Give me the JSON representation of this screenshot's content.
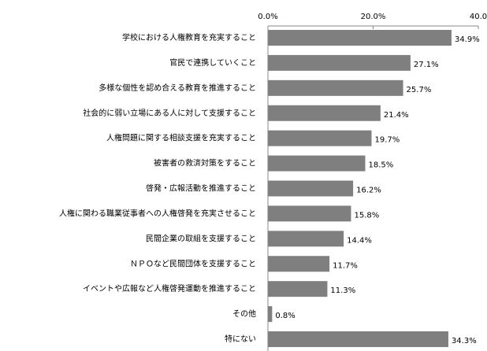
{
  "chart_data": {
    "type": "bar",
    "orientation": "horizontal",
    "categories": [
      "学校における人権教育を充実すること",
      "官民で連携していくこと",
      "多様な個性を認め合える教育を推進すること",
      "社会的に弱い立場にある人に対して支援すること",
      "人権問題に関する相談支援を充実すること",
      "被害者の救済対策をすること",
      "啓発・広報活動を推進すること",
      "人権に関わる職業従事者への人権啓発を充実させること",
      "民間企業の取組を支援すること",
      "ＮＰＯなど民間団体を支援すること",
      "イベントや広報など人権啓発運動を推進すること",
      "その他",
      "特にない"
    ],
    "values": [
      34.9,
      27.1,
      25.7,
      21.4,
      19.7,
      18.5,
      16.2,
      15.8,
      14.4,
      11.7,
      11.3,
      0.8,
      34.3
    ],
    "value_labels": [
      "34.9%",
      "27.1%",
      "25.7%",
      "21.4%",
      "19.7%",
      "18.5%",
      "16.2%",
      "15.8%",
      "14.4%",
      "11.7%",
      "11.3%",
      "0.8%",
      "34.3%"
    ],
    "color": "#7f7f7f",
    "xlim": [
      0,
      40
    ],
    "xticks": [
      {
        "value": 0,
        "label": "0.0%"
      },
      {
        "value": 20,
        "label": "20.0%"
      },
      {
        "value": 40,
        "label": "40.0"
      }
    ]
  }
}
